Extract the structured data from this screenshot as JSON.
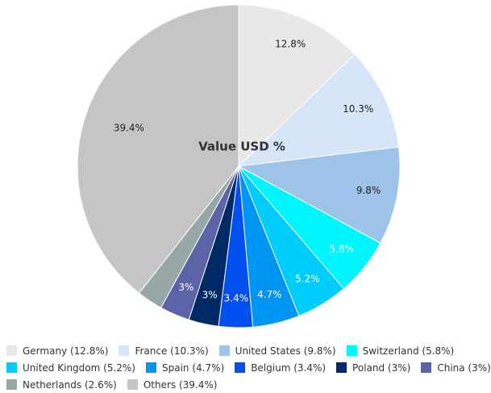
{
  "chart_data": {
    "type": "pie",
    "title": "Value USD %",
    "start_angle_deg": 0,
    "direction": "clockwise",
    "slices": [
      {
        "name": "Germany",
        "value": 12.8,
        "label": "12.8%",
        "legend": "Germany (12.8%)",
        "color": "#e8e8e8",
        "label_color": "#222222"
      },
      {
        "name": "France",
        "value": 10.3,
        "label": "10.3%",
        "legend": "France (10.3%)",
        "color": "#d6e6f8",
        "label_color": "#222222"
      },
      {
        "name": "United States",
        "value": 9.8,
        "label": "9.8%",
        "legend": "United States (9.8%)",
        "color": "#9dc3e8",
        "label_color": "#222222"
      },
      {
        "name": "Switzerland",
        "value": 5.8,
        "label": "5.8%",
        "legend": "Switzerland (5.8%)",
        "color": "#00f6ff",
        "label_color": "#ffffff"
      },
      {
        "name": "United Kingdom",
        "value": 5.2,
        "label": "5.2%",
        "legend": "United Kingdom (5.2%)",
        "color": "#00cdfa",
        "label_color": "#ffffff"
      },
      {
        "name": "Spain",
        "value": 4.7,
        "label": "4.7%",
        "legend": "Spain (4.7%)",
        "color": "#0095f2",
        "label_color": "#ffffff"
      },
      {
        "name": "Belgium",
        "value": 3.4,
        "label": "3.4%",
        "legend": "Belgium (3.4%)",
        "color": "#0050f0",
        "label_color": "#ffffff"
      },
      {
        "name": "Poland",
        "value": 3,
        "label": "3%",
        "legend": "Poland (3%)",
        "color": "#002a66",
        "label_color": "#ffffff"
      },
      {
        "name": "China",
        "value": 3,
        "label": "3%",
        "legend": "China (3%)",
        "color": "#5a64a6",
        "label_color": "#ffffff"
      },
      {
        "name": "Netherlands",
        "value": 2.6,
        "label": "",
        "legend": "Netherlands (2.6%)",
        "color": "#97a7a8",
        "label_color": "#ffffff"
      },
      {
        "name": "Others",
        "value": 39.4,
        "label": "39.4%",
        "legend": "Others (39.4%)",
        "color": "#c5c5c5",
        "label_color": "#222222"
      }
    ],
    "legend_placement": "bottom"
  }
}
